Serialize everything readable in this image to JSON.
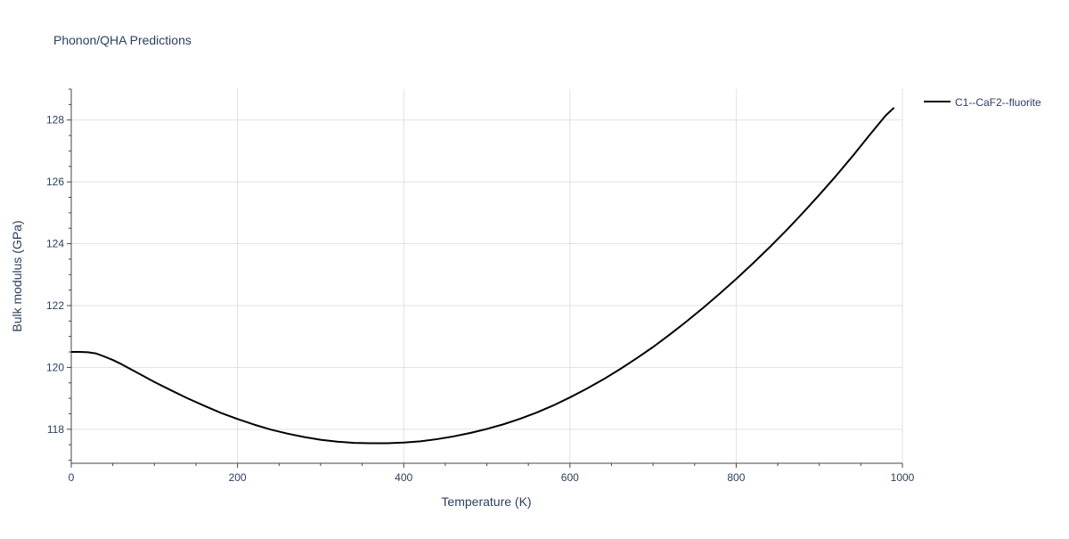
{
  "chart_data": {
    "type": "line",
    "title": "Phonon/QHA Predictions",
    "xlabel": "Temperature (K)",
    "ylabel": "Bulk modulus (GPa)",
    "xlim": [
      0,
      1000
    ],
    "ylim": [
      116.9,
      129.0
    ],
    "x_ticks": [
      0,
      200,
      400,
      600,
      800,
      1000
    ],
    "y_ticks": [
      118,
      120,
      122,
      124,
      126,
      128
    ],
    "grid": true,
    "legend_position": "top-right",
    "series": [
      {
        "name": "C1--CaF2--fluorite",
        "color": "#000000",
        "x": [
          0,
          10,
          20,
          30,
          40,
          50,
          60,
          80,
          100,
          120,
          140,
          160,
          180,
          200,
          220,
          240,
          260,
          280,
          300,
          320,
          340,
          360,
          380,
          400,
          420,
          440,
          460,
          480,
          500,
          520,
          540,
          560,
          580,
          600,
          620,
          640,
          660,
          680,
          700,
          720,
          740,
          760,
          780,
          800,
          820,
          840,
          860,
          880,
          900,
          920,
          940,
          960,
          980,
          990
        ],
        "y": [
          120.5,
          120.5,
          120.49,
          120.45,
          120.35,
          120.24,
          120.11,
          119.82,
          119.53,
          119.26,
          119.0,
          118.76,
          118.53,
          118.33,
          118.15,
          117.99,
          117.86,
          117.75,
          117.66,
          117.6,
          117.56,
          117.55,
          117.55,
          117.57,
          117.61,
          117.68,
          117.77,
          117.88,
          118.01,
          118.16,
          118.34,
          118.54,
          118.77,
          119.03,
          119.31,
          119.61,
          119.94,
          120.29,
          120.66,
          121.06,
          121.48,
          121.92,
          122.38,
          122.86,
          123.36,
          123.88,
          124.42,
          124.99,
          125.58,
          126.19,
          126.83,
          127.5,
          128.15,
          128.4
        ]
      }
    ]
  }
}
